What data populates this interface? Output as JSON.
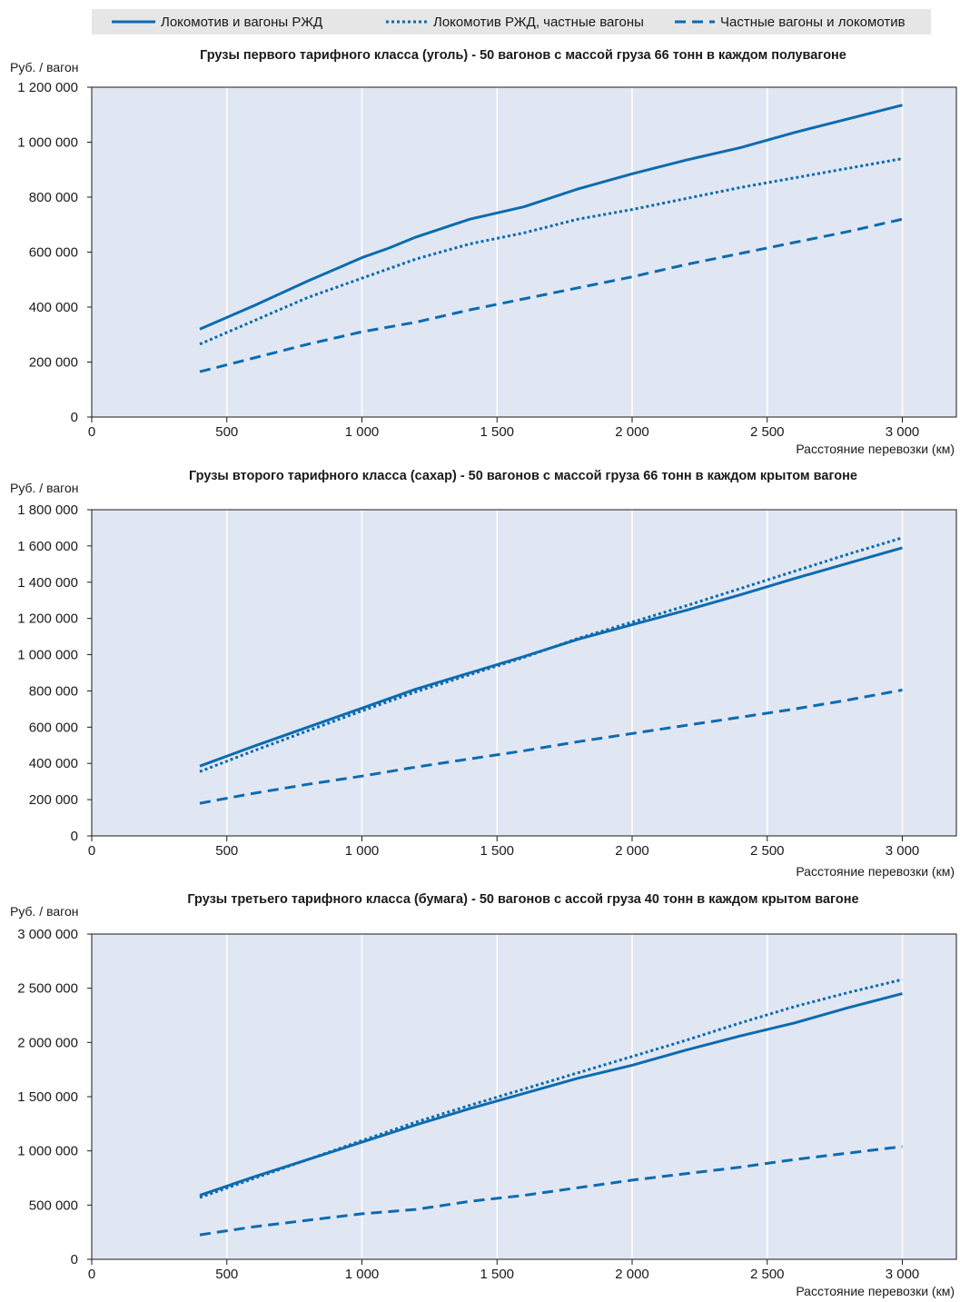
{
  "legend": [
    {
      "label": "Локомотив и вагоны РЖД",
      "style": "solid"
    },
    {
      "label": "Локомотив РЖД, частные вагоны",
      "style": "dotted"
    },
    {
      "label": "Частные вагоны и локомотив",
      "style": "dashed"
    }
  ],
  "colors": {
    "line": "#0b6bb0",
    "plot_bg": "#e1e7f2",
    "grid": "#ffffff",
    "legend_bg": "#e6e6e6"
  },
  "chart_data": [
    {
      "type": "line",
      "title": "Грузы первого тарифного класса (уголь) - 50 вагонов с массой груза 66 тонн в каждом полувагоне",
      "ylabel": "Руб. / вагон",
      "xlabel": "Расстояние перевозки (км)",
      "xlim": [
        0,
        3200
      ],
      "ylim": [
        0,
        1200000
      ],
      "xticks": [
        0,
        500,
        1000,
        1500,
        2000,
        2500,
        3000
      ],
      "xtick_labels": [
        "0",
        "500",
        "1 000",
        "1 500",
        "2 000",
        "2 500",
        "3 000"
      ],
      "yticks": [
        0,
        200000,
        400000,
        600000,
        800000,
        1000000,
        1200000
      ],
      "ytick_labels": [
        "0",
        "200 000",
        "400 000",
        "600 000",
        "800 000",
        "1 000 000",
        "1 200 000"
      ],
      "grid": "vertical",
      "series": [
        {
          "name": "Локомотив и вагоны РЖД",
          "style": "solid",
          "x": [
            400,
            600,
            800,
            1000,
            1100,
            1200,
            1400,
            1600,
            1800,
            2000,
            2200,
            2400,
            2600,
            2800,
            3000
          ],
          "y": [
            320000,
            405000,
            495000,
            580000,
            615000,
            655000,
            720000,
            765000,
            830000,
            885000,
            935000,
            980000,
            1035000,
            1085000,
            1135000
          ]
        },
        {
          "name": "Локомотив РЖД, частные вагоны",
          "style": "dotted",
          "x": [
            400,
            600,
            800,
            1000,
            1200,
            1400,
            1600,
            1800,
            2000,
            2200,
            2400,
            2600,
            2800,
            3000
          ],
          "y": [
            265000,
            350000,
            435000,
            505000,
            575000,
            630000,
            670000,
            720000,
            755000,
            795000,
            835000,
            870000,
            905000,
            940000
          ]
        },
        {
          "name": "Частные вагоны и локомотив",
          "style": "dashed",
          "x": [
            400,
            600,
            800,
            1000,
            1200,
            1400,
            1600,
            1800,
            2000,
            2200,
            2400,
            2600,
            2800,
            3000
          ],
          "y": [
            165000,
            215000,
            265000,
            310000,
            345000,
            390000,
            430000,
            470000,
            510000,
            555000,
            595000,
            635000,
            675000,
            720000
          ]
        }
      ]
    },
    {
      "type": "line",
      "title": "Грузы второго тарифного класса (сахар) - 50 вагонов с массой груза 66 тонн в каждом крытом вагоне",
      "ylabel": "Руб. / вагон",
      "xlabel": "Расстояние перевозки (км)",
      "xlim": [
        0,
        3200
      ],
      "ylim": [
        0,
        1800000
      ],
      "xticks": [
        0,
        500,
        1000,
        1500,
        2000,
        2500,
        3000
      ],
      "xtick_labels": [
        "0",
        "500",
        "1 000",
        "1 500",
        "2 000",
        "2 500",
        "3 000"
      ],
      "yticks": [
        0,
        200000,
        400000,
        600000,
        800000,
        1000000,
        1200000,
        1400000,
        1600000,
        1800000
      ],
      "ytick_labels": [
        "0",
        "200 000",
        "400 000",
        "600 000",
        "800 000",
        "1 000 000",
        "1 200 000",
        "1 400 000",
        "1 600 000",
        "1 800 000"
      ],
      "grid": "vertical",
      "series": [
        {
          "name": "Локомотив и вагоны РЖД",
          "style": "solid",
          "x": [
            400,
            600,
            800,
            1000,
            1200,
            1400,
            1600,
            1800,
            2000,
            2200,
            2400,
            2600,
            2800,
            3000
          ],
          "y": [
            385000,
            495000,
            600000,
            705000,
            810000,
            900000,
            990000,
            1085000,
            1165000,
            1245000,
            1330000,
            1420000,
            1505000,
            1590000
          ]
        },
        {
          "name": "Локомотив РЖД, частные вагоны",
          "style": "dotted",
          "x": [
            400,
            600,
            800,
            1000,
            1200,
            1400,
            1600,
            1800,
            2000,
            2200,
            2400,
            2600,
            2800,
            3000
          ],
          "y": [
            355000,
            470000,
            580000,
            690000,
            795000,
            890000,
            985000,
            1090000,
            1180000,
            1270000,
            1365000,
            1460000,
            1555000,
            1645000
          ]
        },
        {
          "name": "Частные вагоны и локомотив",
          "style": "dashed",
          "x": [
            400,
            600,
            800,
            1000,
            1200,
            1400,
            1600,
            1800,
            2000,
            2200,
            2400,
            2600,
            2800,
            3000
          ],
          "y": [
            180000,
            235000,
            285000,
            330000,
            380000,
            425000,
            470000,
            520000,
            565000,
            610000,
            655000,
            700000,
            750000,
            805000
          ]
        }
      ]
    },
    {
      "type": "line",
      "title": "Грузы третьего тарифного класса (бумага) - 50 вагонов с ассой груза 40 тонн в каждом крытом вагоне",
      "ylabel": "Руб. / вагон",
      "xlabel": "Расстояние перевозки (км)",
      "xlim": [
        0,
        3200
      ],
      "ylim": [
        0,
        3000000
      ],
      "xticks": [
        0,
        500,
        1000,
        1500,
        2000,
        2500,
        3000
      ],
      "xtick_labels": [
        "0",
        "500",
        "1 000",
        "1 500",
        "2 000",
        "2 500",
        "3 000"
      ],
      "yticks": [
        0,
        500000,
        1000000,
        1500000,
        2000000,
        2500000,
        3000000
      ],
      "ytick_labels": [
        "0",
        "500 000",
        "1 000 000",
        "1 500 000",
        "2 000 000",
        "2 500 000",
        "3 000 000"
      ],
      "grid": "vertical",
      "series": [
        {
          "name": "Локомотив и вагоны РЖД",
          "style": "solid",
          "x": [
            400,
            600,
            800,
            1000,
            1200,
            1400,
            1600,
            1800,
            2000,
            2200,
            2400,
            2600,
            2800,
            3000
          ],
          "y": [
            590000,
            760000,
            920000,
            1080000,
            1240000,
            1390000,
            1530000,
            1670000,
            1790000,
            1930000,
            2060000,
            2180000,
            2320000,
            2450000
          ]
        },
        {
          "name": "Локомотив РЖД, частные вагоны",
          "style": "dotted",
          "x": [
            400,
            600,
            800,
            1000,
            1200,
            1400,
            1600,
            1800,
            2000,
            2200,
            2400,
            2600,
            2800,
            3000
          ],
          "y": [
            570000,
            745000,
            920000,
            1095000,
            1265000,
            1420000,
            1570000,
            1720000,
            1870000,
            2020000,
            2180000,
            2330000,
            2460000,
            2580000
          ]
        },
        {
          "name": "Частные вагоны и локомотив",
          "style": "dashed",
          "x": [
            400,
            600,
            800,
            1000,
            1200,
            1400,
            1600,
            1800,
            2000,
            2200,
            2400,
            2600,
            2800,
            3000
          ],
          "y": [
            225000,
            300000,
            360000,
            420000,
            460000,
            535000,
            590000,
            660000,
            730000,
            790000,
            850000,
            920000,
            980000,
            1040000
          ]
        }
      ]
    }
  ]
}
